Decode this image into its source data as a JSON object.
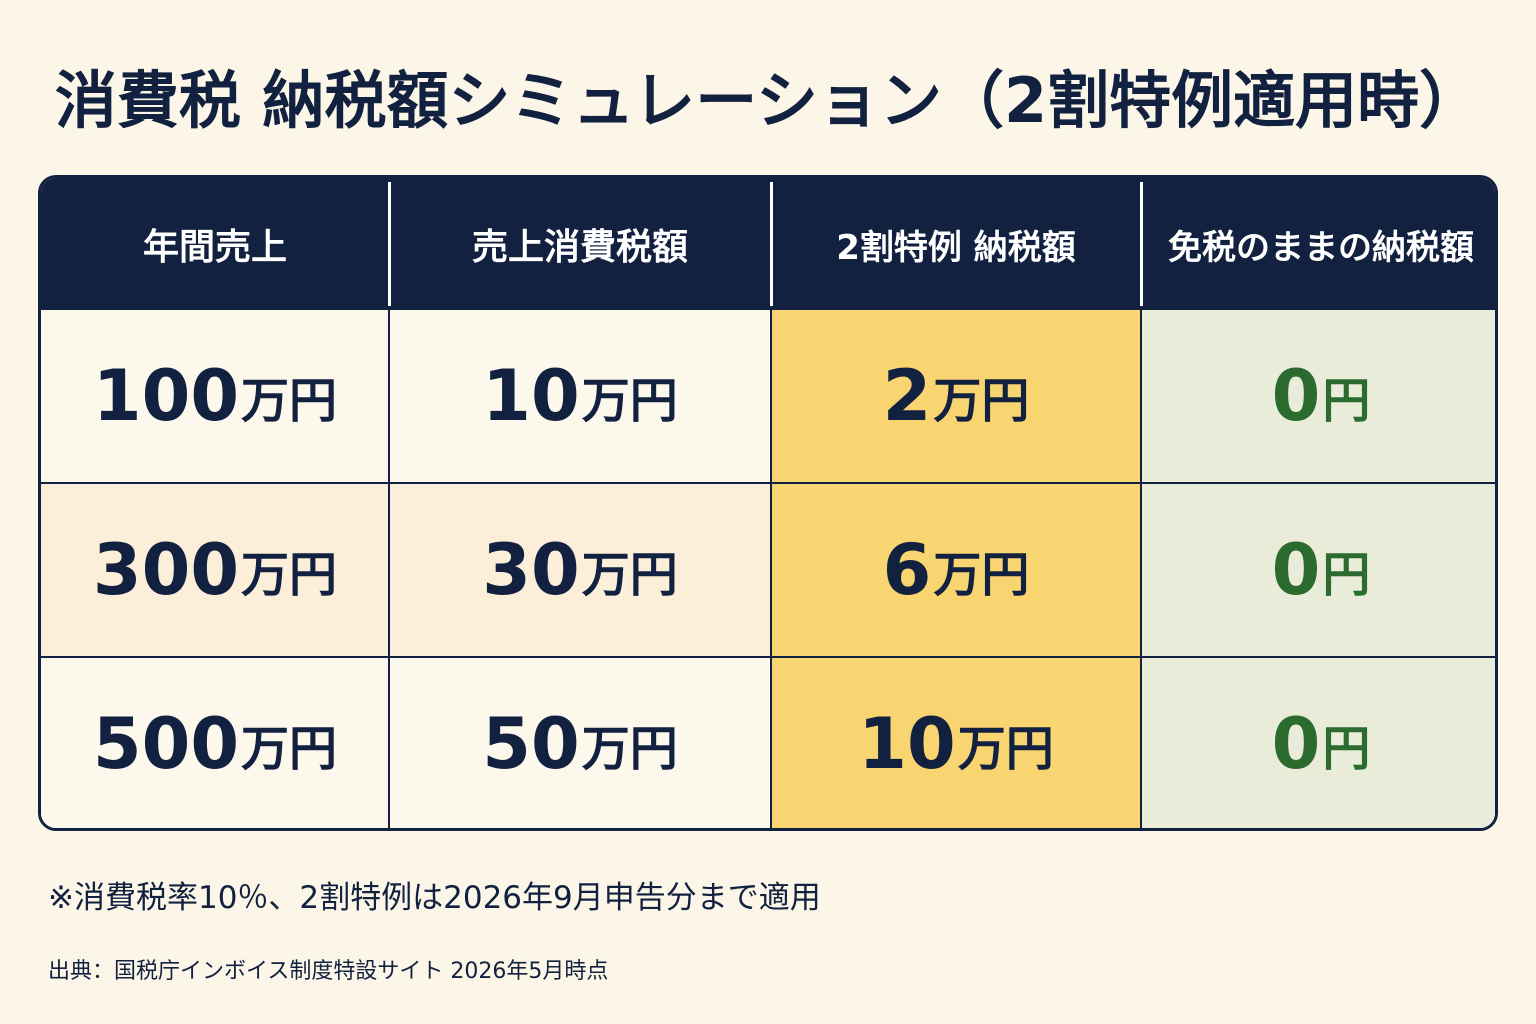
{
  "title": "消費税 納税額シミュレーション（2割特例適用時）",
  "headers": [
    "年間売上",
    "売上消費税額",
    "2割特例 納税額",
    "免税のままの納税額"
  ],
  "rows": [
    {
      "sales": {
        "num": "100",
        "unit": "万円"
      },
      "sales_tax": {
        "num": "10",
        "unit": "万円"
      },
      "special": {
        "num": "2",
        "unit": "万円"
      },
      "exempt": {
        "num": "0",
        "unit": "円"
      }
    },
    {
      "sales": {
        "num": "300",
        "unit": "万円"
      },
      "sales_tax": {
        "num": "30",
        "unit": "万円"
      },
      "special": {
        "num": "6",
        "unit": "万円"
      },
      "exempt": {
        "num": "0",
        "unit": "円"
      }
    },
    {
      "sales": {
        "num": "500",
        "unit": "万円"
      },
      "sales_tax": {
        "num": "50",
        "unit": "万円"
      },
      "special": {
        "num": "10",
        "unit": "万円"
      },
      "exempt": {
        "num": "0",
        "unit": "円"
      }
    }
  ],
  "note": "※消費税率10％、2割特例は2026年9月申告分まで適用",
  "source": "出典：国税庁インボイス制度特設サイト 2026年5月時点",
  "colors": {
    "background": "#fcf6e8",
    "header_bg": "#12213f",
    "special_column": "#f9d571",
    "exempt_column": "#e9ecd9",
    "exempt_text": "#2c6b2f"
  }
}
